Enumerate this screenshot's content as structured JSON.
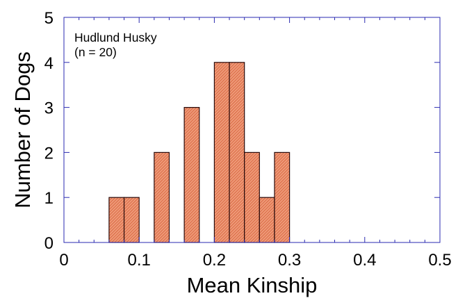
{
  "chart_data": {
    "type": "bar",
    "subtype": "histogram",
    "title": "",
    "xlabel": "Mean Kinship",
    "ylabel": "Number of Dogs",
    "xlim": [
      0,
      0.5
    ],
    "ylim": [
      0,
      5
    ],
    "x_ticks": [
      "0",
      "0.1",
      "0.2",
      "0.3",
      "0.4",
      "0.5"
    ],
    "y_ticks": [
      "0",
      "1",
      "2",
      "3",
      "4",
      "5"
    ],
    "annotation": {
      "line1": "Hudlund Husky",
      "line2": "(n = 20)"
    },
    "bin_width": 0.02,
    "bins": [
      {
        "x0": 0.06,
        "count": 1
      },
      {
        "x0": 0.08,
        "count": 1
      },
      {
        "x0": 0.12,
        "count": 2
      },
      {
        "x0": 0.16,
        "count": 3
      },
      {
        "x0": 0.2,
        "count": 4
      },
      {
        "x0": 0.22,
        "count": 4
      },
      {
        "x0": 0.24,
        "count": 2
      },
      {
        "x0": 0.26,
        "count": 1
      },
      {
        "x0": 0.28,
        "count": 2
      }
    ],
    "grid": false,
    "colors": {
      "bar_fill": "#ee9a78",
      "bar_hatch": "#d0502a",
      "bar_edge": "#2a0a0a",
      "axis_frame": "#2a2ab0"
    }
  }
}
